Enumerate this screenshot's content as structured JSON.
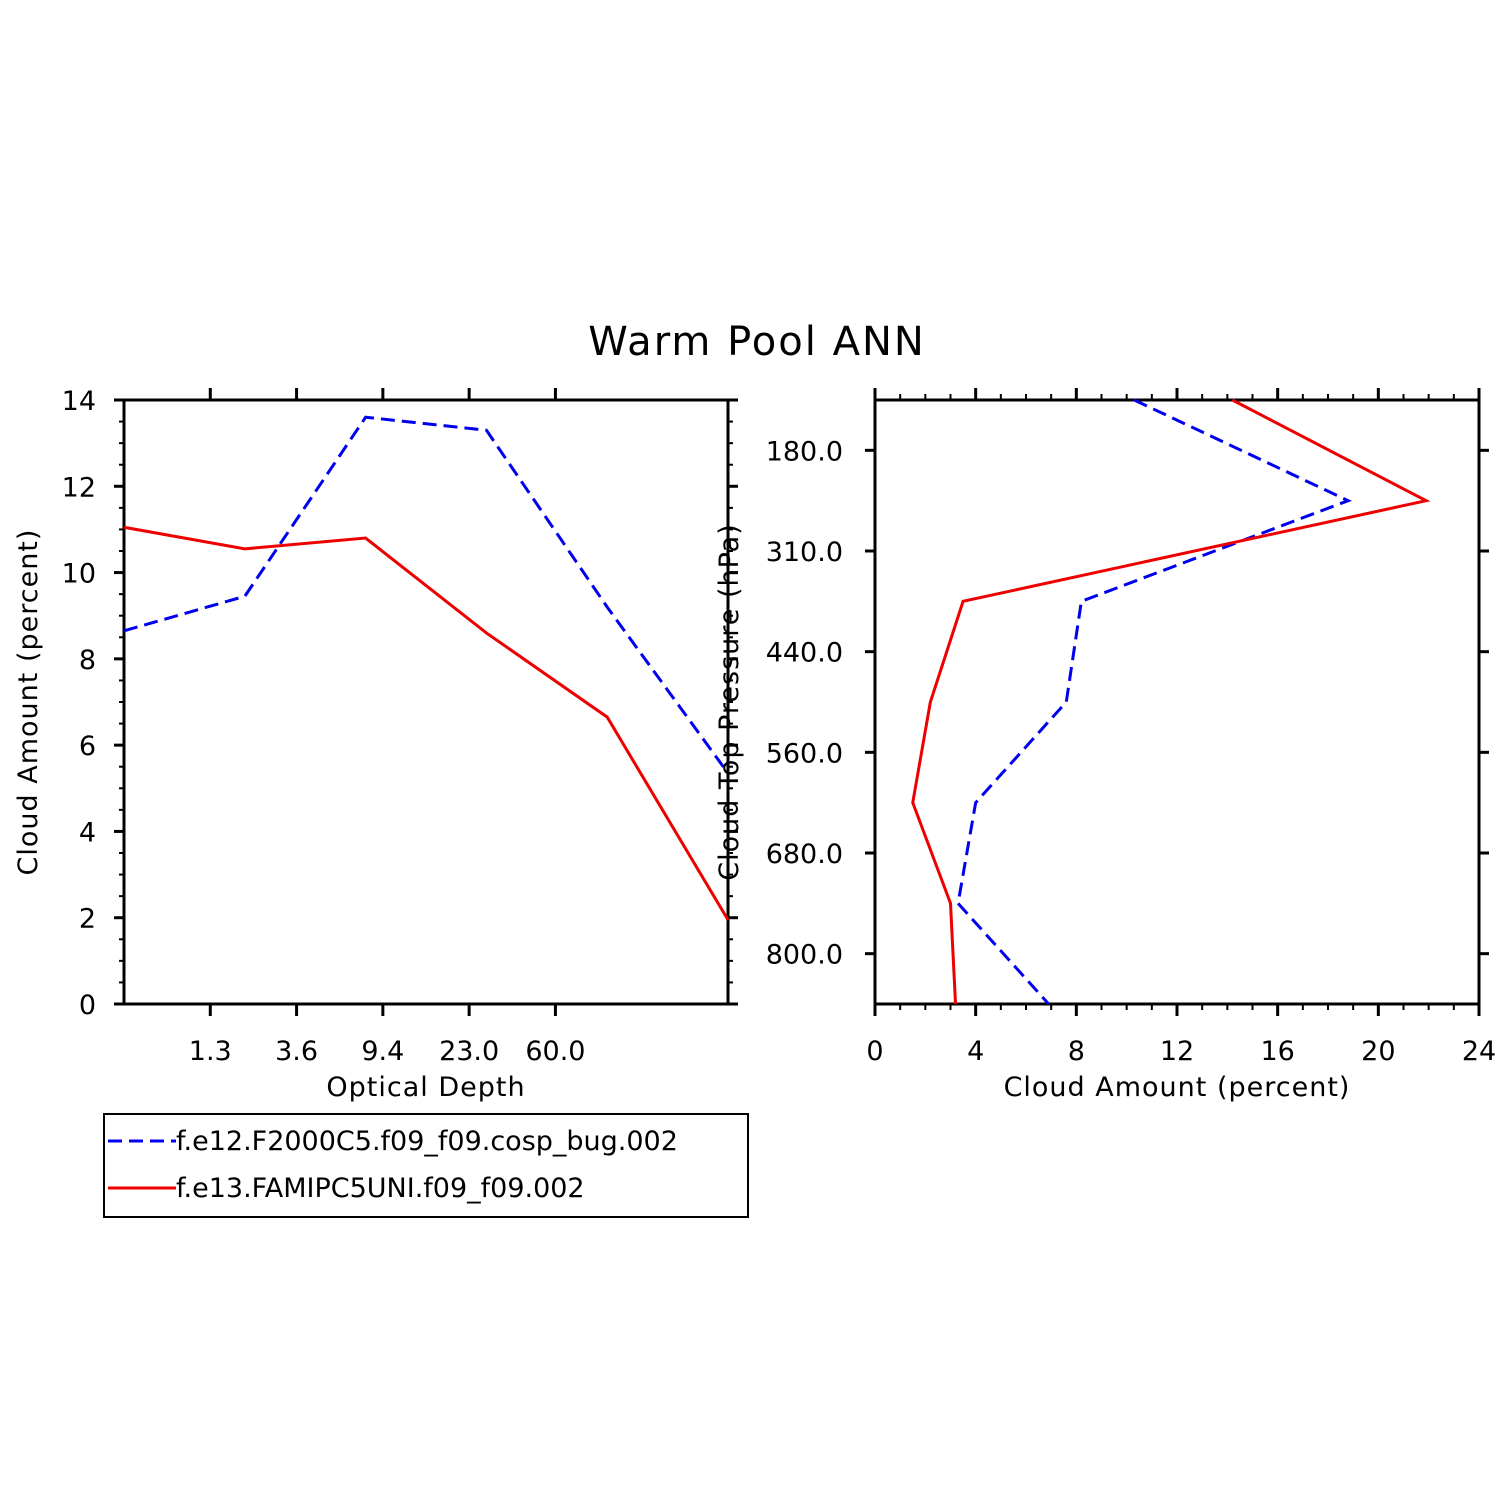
{
  "title": "Warm Pool ANN",
  "colors": {
    "series1": "#0000ee",
    "series2": "#ee0000"
  },
  "chart_data": [
    {
      "type": "line",
      "panel": "left",
      "xlabel": "Optical Depth",
      "ylabel": "Cloud Amount (percent)",
      "xtick_labels": [
        "1.3",
        "3.6",
        "9.4",
        "23.0",
        "60.0"
      ],
      "x_bins": 7,
      "ylim": [
        0,
        14
      ],
      "yticks": [
        "0",
        "2",
        "4",
        "6",
        "8",
        "10",
        "12",
        "14"
      ],
      "series": [
        {
          "name": "f.e12.F2000C5.f09_f09.cosp_bug.002",
          "style": "dashed",
          "color": "#0000ee",
          "values": [
            8.65,
            9.45,
            13.6,
            13.3,
            9.2,
            5.35
          ]
        },
        {
          "name": "f.e13.FAMIPC5UNI.f09_f09.002",
          "style": "solid",
          "color": "#ee0000",
          "values": [
            11.05,
            10.55,
            10.8,
            8.6,
            6.65,
            1.95
          ]
        }
      ]
    },
    {
      "type": "line",
      "panel": "right",
      "xlabel": "Cloud Amount (percent)",
      "ylabel": "Cloud Top Pressure (hPa)",
      "xlim": [
        0,
        24
      ],
      "xticks": [
        "0",
        "4",
        "8",
        "12",
        "16",
        "20",
        "24"
      ],
      "ytick_labels": [
        "180.0",
        "310.0",
        "440.0",
        "560.0",
        "680.0",
        "800.0"
      ],
      "y_bins": 6,
      "series": [
        {
          "name": "f.e12.F2000C5.f09_f09.cosp_bug.002",
          "style": "dashed",
          "color": "#0000ee",
          "values": [
            10.3,
            18.8,
            8.2,
            7.6,
            4.0,
            3.3,
            6.9
          ]
        },
        {
          "name": "f.e13.FAMIPC5UNI.f09_f09.002",
          "style": "solid",
          "color": "#ee0000",
          "values": [
            14.2,
            21.9,
            3.5,
            2.2,
            1.5,
            3.0,
            3.2
          ]
        }
      ]
    }
  ],
  "legend": {
    "entries": [
      {
        "label": "f.e12.F2000C5.f09_f09.cosp_bug.002",
        "style": "dashed",
        "color": "#0000ee"
      },
      {
        "label": "f.e13.FAMIPC5UNI.f09_f09.002",
        "style": "solid",
        "color": "#ee0000"
      }
    ]
  }
}
